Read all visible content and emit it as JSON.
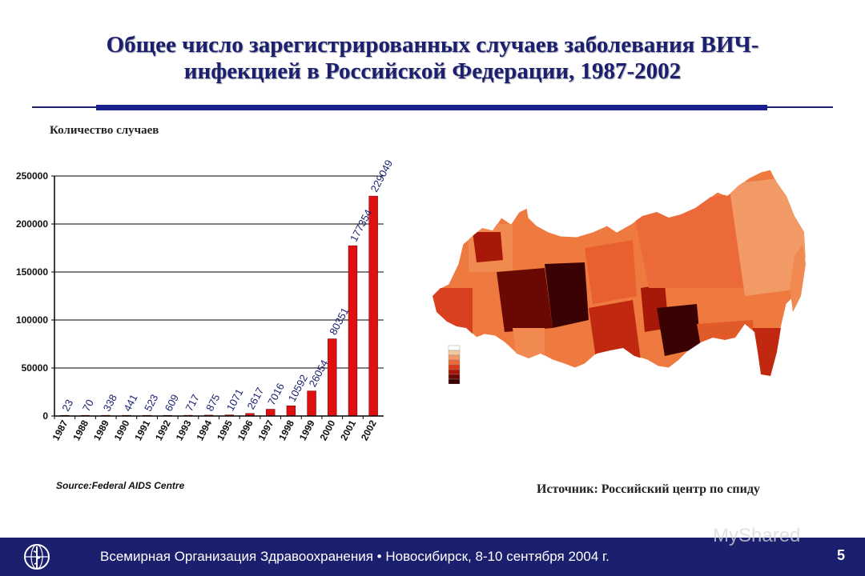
{
  "title_line1": "Общее число зарегистрированных случаев заболевания ВИЧ-",
  "title_line2": "инфекцией в Российской Федерации, 1987-2002",
  "chart_data": {
    "type": "bar",
    "title": "",
    "ylabel": "Количество случаев",
    "xlabel": "",
    "categories": [
      "1987",
      "1988",
      "1989",
      "1990",
      "1991",
      "1992",
      "1993",
      "1994",
      "1995",
      "1996",
      "1997",
      "1998",
      "1999",
      "2000",
      "2001",
      "2002"
    ],
    "values": [
      23,
      70,
      338,
      441,
      523,
      609,
      717,
      875,
      1071,
      2617,
      7016,
      10592,
      26054,
      80351,
      177354,
      229049
    ],
    "value_labels": [
      "23",
      "70",
      "338",
      "441",
      "523",
      "609",
      "717",
      "875",
      "1071",
      "2617",
      "7016",
      "10592",
      "26054",
      "80351",
      "177354",
      "229049"
    ],
    "yticks": [
      "0",
      "50000",
      "100000",
      "150000",
      "200000",
      "250000"
    ],
    "ylim": [
      0,
      250000
    ],
    "bar_color": "#e01010",
    "grid": true
  },
  "source_en": "Source:Federal AIDS Centre",
  "source_ru": "Источник: Российский центр по спиду",
  "footer_text": "Всемирная Организация Здравоохранения • Новосибирск, 8-10 сентября 2004 г.",
  "page_number": "5",
  "watermark": "MyShared",
  "colors": {
    "title": "#1a1f6e",
    "footer_bg": "#1a1f6e",
    "bar": "#e01010"
  },
  "map_legend_colors": [
    "#ffffff",
    "#f6c8a0",
    "#f29a66",
    "#ec6a3a",
    "#d83a1a",
    "#a81808",
    "#6a0804",
    "#3a0202"
  ]
}
